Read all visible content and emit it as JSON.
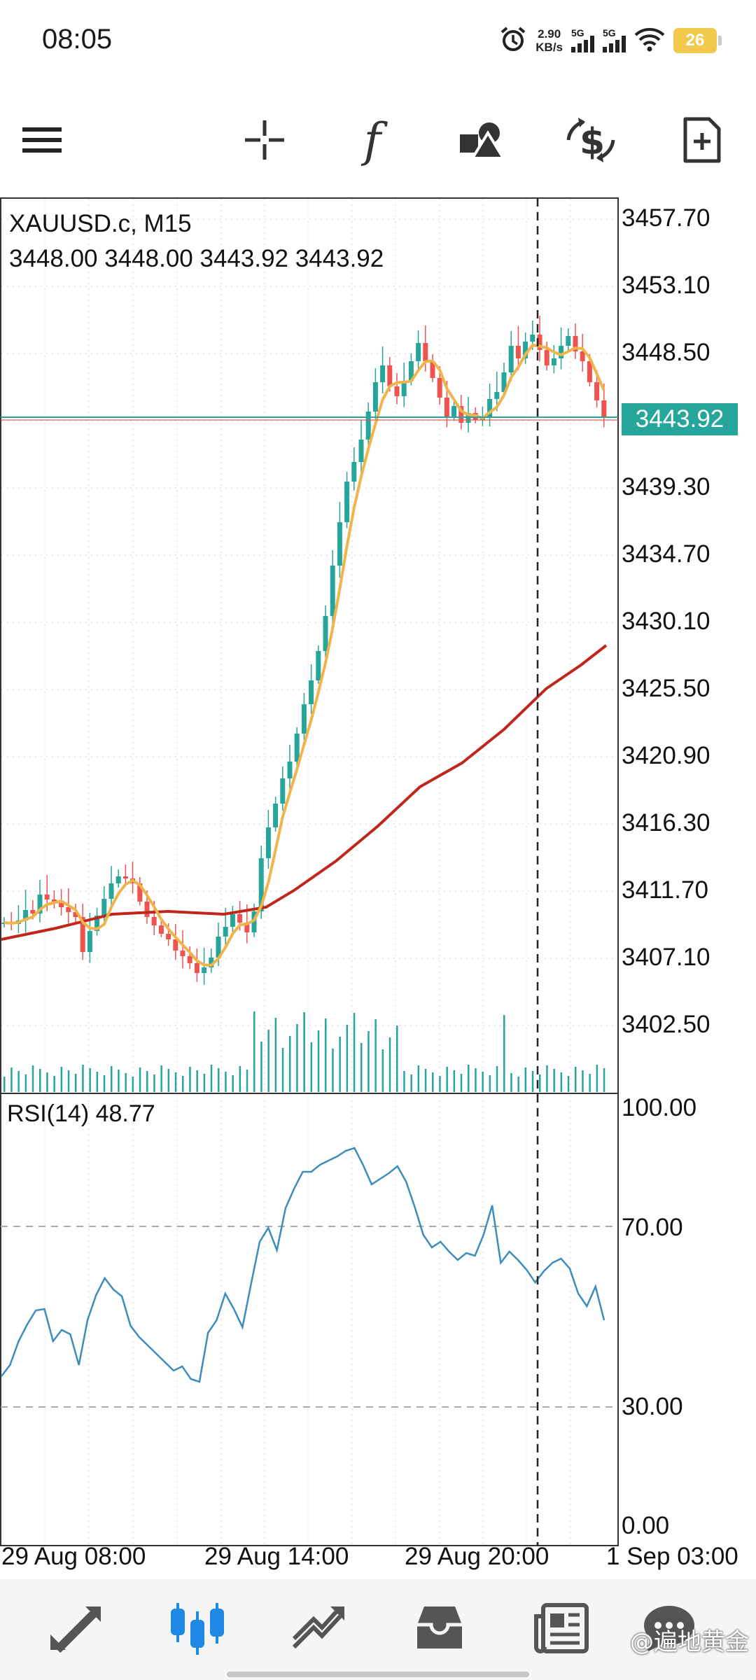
{
  "status_bar": {
    "time": "08:05",
    "net_speed_value": "2.90",
    "net_speed_unit": "KB/s",
    "signal_1_label": "5G",
    "signal_2_label": "5G",
    "battery": "26",
    "icons": [
      "alarm-icon",
      "signal-icon",
      "signal-icon",
      "wifi-icon",
      "battery-icon"
    ]
  },
  "toolbar": {
    "icons": [
      "menu-icon",
      "crosshair-icon",
      "indicators-icon",
      "objects-icon",
      "trade-icon",
      "new-order-icon"
    ],
    "indicators_glyph": "f"
  },
  "chart": {
    "symbol": "XAUUSD.c, M15",
    "ohlc": "3448.00 3448.00 3443.92 3443.92",
    "current_price": "3443.92",
    "price_axis": [
      "3457.70",
      "3453.10",
      "3448.50",
      "3439.30",
      "3434.70",
      "3430.10",
      "3425.50",
      "3420.90",
      "3416.30",
      "3411.70",
      "3407.10",
      "3402.50"
    ],
    "rsi_label": "RSI(14) 48.77",
    "rsi_axis": [
      "100.00",
      "70.00",
      "30.00",
      "0.00"
    ],
    "time_axis": [
      "29 Aug 08:00",
      "29 Aug 14:00",
      "29 Aug 20:00",
      "1 Sep 03:00"
    ],
    "colors": {
      "up": "#26a69a",
      "down": "#ef5350",
      "ma_fast": "#f0b44a",
      "ma_slow": "#c0261c",
      "rsi": "#3c8dbc"
    }
  },
  "bottom_nav": {
    "items": [
      "quotes-icon",
      "chart-icon",
      "trade-icon",
      "history-icon",
      "news-icon",
      "messages-icon"
    ],
    "watermark": "@遍地黄金"
  }
}
